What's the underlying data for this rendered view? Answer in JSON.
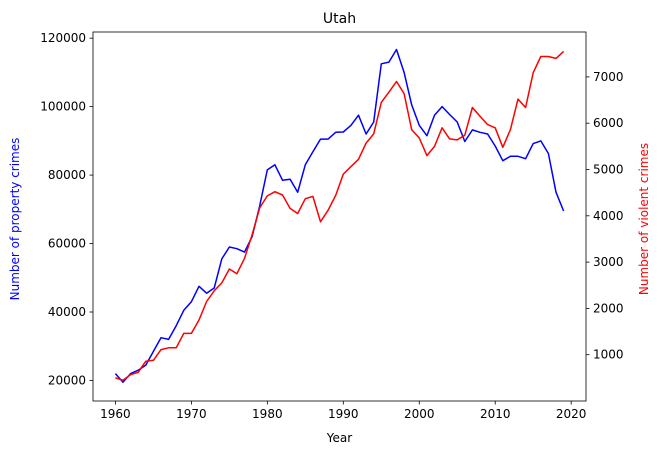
{
  "chart_data": {
    "type": "line",
    "title": "Utah",
    "xlabel": "Year",
    "ylabel_left": "Number of property crimes",
    "ylabel_right": "Number of violent crimes",
    "x": [
      1960,
      1961,
      1962,
      1963,
      1964,
      1965,
      1966,
      1967,
      1968,
      1969,
      1970,
      1971,
      1972,
      1973,
      1974,
      1975,
      1976,
      1977,
      1978,
      1979,
      1980,
      1981,
      1982,
      1983,
      1984,
      1985,
      1986,
      1987,
      1988,
      1989,
      1990,
      1991,
      1992,
      1993,
      1994,
      1995,
      1996,
      1997,
      1998,
      1999,
      2000,
      2001,
      2002,
      2003,
      2004,
      2005,
      2006,
      2007,
      2008,
      2009,
      2010,
      2011,
      2012,
      2013,
      2014,
      2015,
      2016,
      2017,
      2018,
      2019
    ],
    "xlim": [
      1957.05,
      2021.95
    ],
    "xticks": [
      1960,
      1970,
      1980,
      1990,
      2000,
      2010,
      2020
    ],
    "ylim_left": [
      14000,
      121800
    ],
    "yticks_left": [
      20000,
      40000,
      60000,
      80000,
      100000,
      120000
    ],
    "ylim_right": [
      0,
      7970
    ],
    "yticks_right": [
      1000,
      2000,
      3000,
      4000,
      5000,
      6000,
      7000
    ],
    "grid": false,
    "series": [
      {
        "name": "Number of property crimes",
        "axis": "left",
        "color": "#0000ff",
        "values": [
          22000,
          19500,
          22000,
          23000,
          24500,
          28500,
          32500,
          32000,
          36000,
          40500,
          43000,
          47500,
          45500,
          47000,
          55500,
          59000,
          58500,
          57500,
          62000,
          71000,
          81500,
          83000,
          78500,
          78800,
          75000,
          83000,
          86800,
          90500,
          90500,
          92500,
          92600,
          94500,
          97500,
          92000,
          95500,
          112500,
          113000,
          116700,
          110000,
          100500,
          94500,
          91500,
          97500,
          100000,
          97700,
          95500,
          89800,
          93200,
          92500,
          92000,
          88500,
          84200,
          85500,
          85500,
          84800,
          89200,
          90000,
          86300,
          75000,
          69500
        ]
      },
      {
        "name": "Number of violent crimes",
        "axis": "right",
        "color": "#ff0000",
        "values": [
          500,
          450,
          570,
          620,
          860,
          880,
          1110,
          1150,
          1150,
          1460,
          1460,
          1750,
          2150,
          2380,
          2550,
          2850,
          2750,
          3080,
          3590,
          4170,
          4430,
          4520,
          4450,
          4160,
          4050,
          4370,
          4420,
          3870,
          4120,
          4440,
          4900,
          5060,
          5220,
          5570,
          5770,
          6450,
          6670,
          6900,
          6640,
          5860,
          5680,
          5300,
          5500,
          5900,
          5660,
          5640,
          5740,
          6340,
          6150,
          5970,
          5900,
          5480,
          5860,
          6520,
          6340,
          7090,
          7440,
          7440,
          7400,
          7550
        ]
      }
    ]
  }
}
